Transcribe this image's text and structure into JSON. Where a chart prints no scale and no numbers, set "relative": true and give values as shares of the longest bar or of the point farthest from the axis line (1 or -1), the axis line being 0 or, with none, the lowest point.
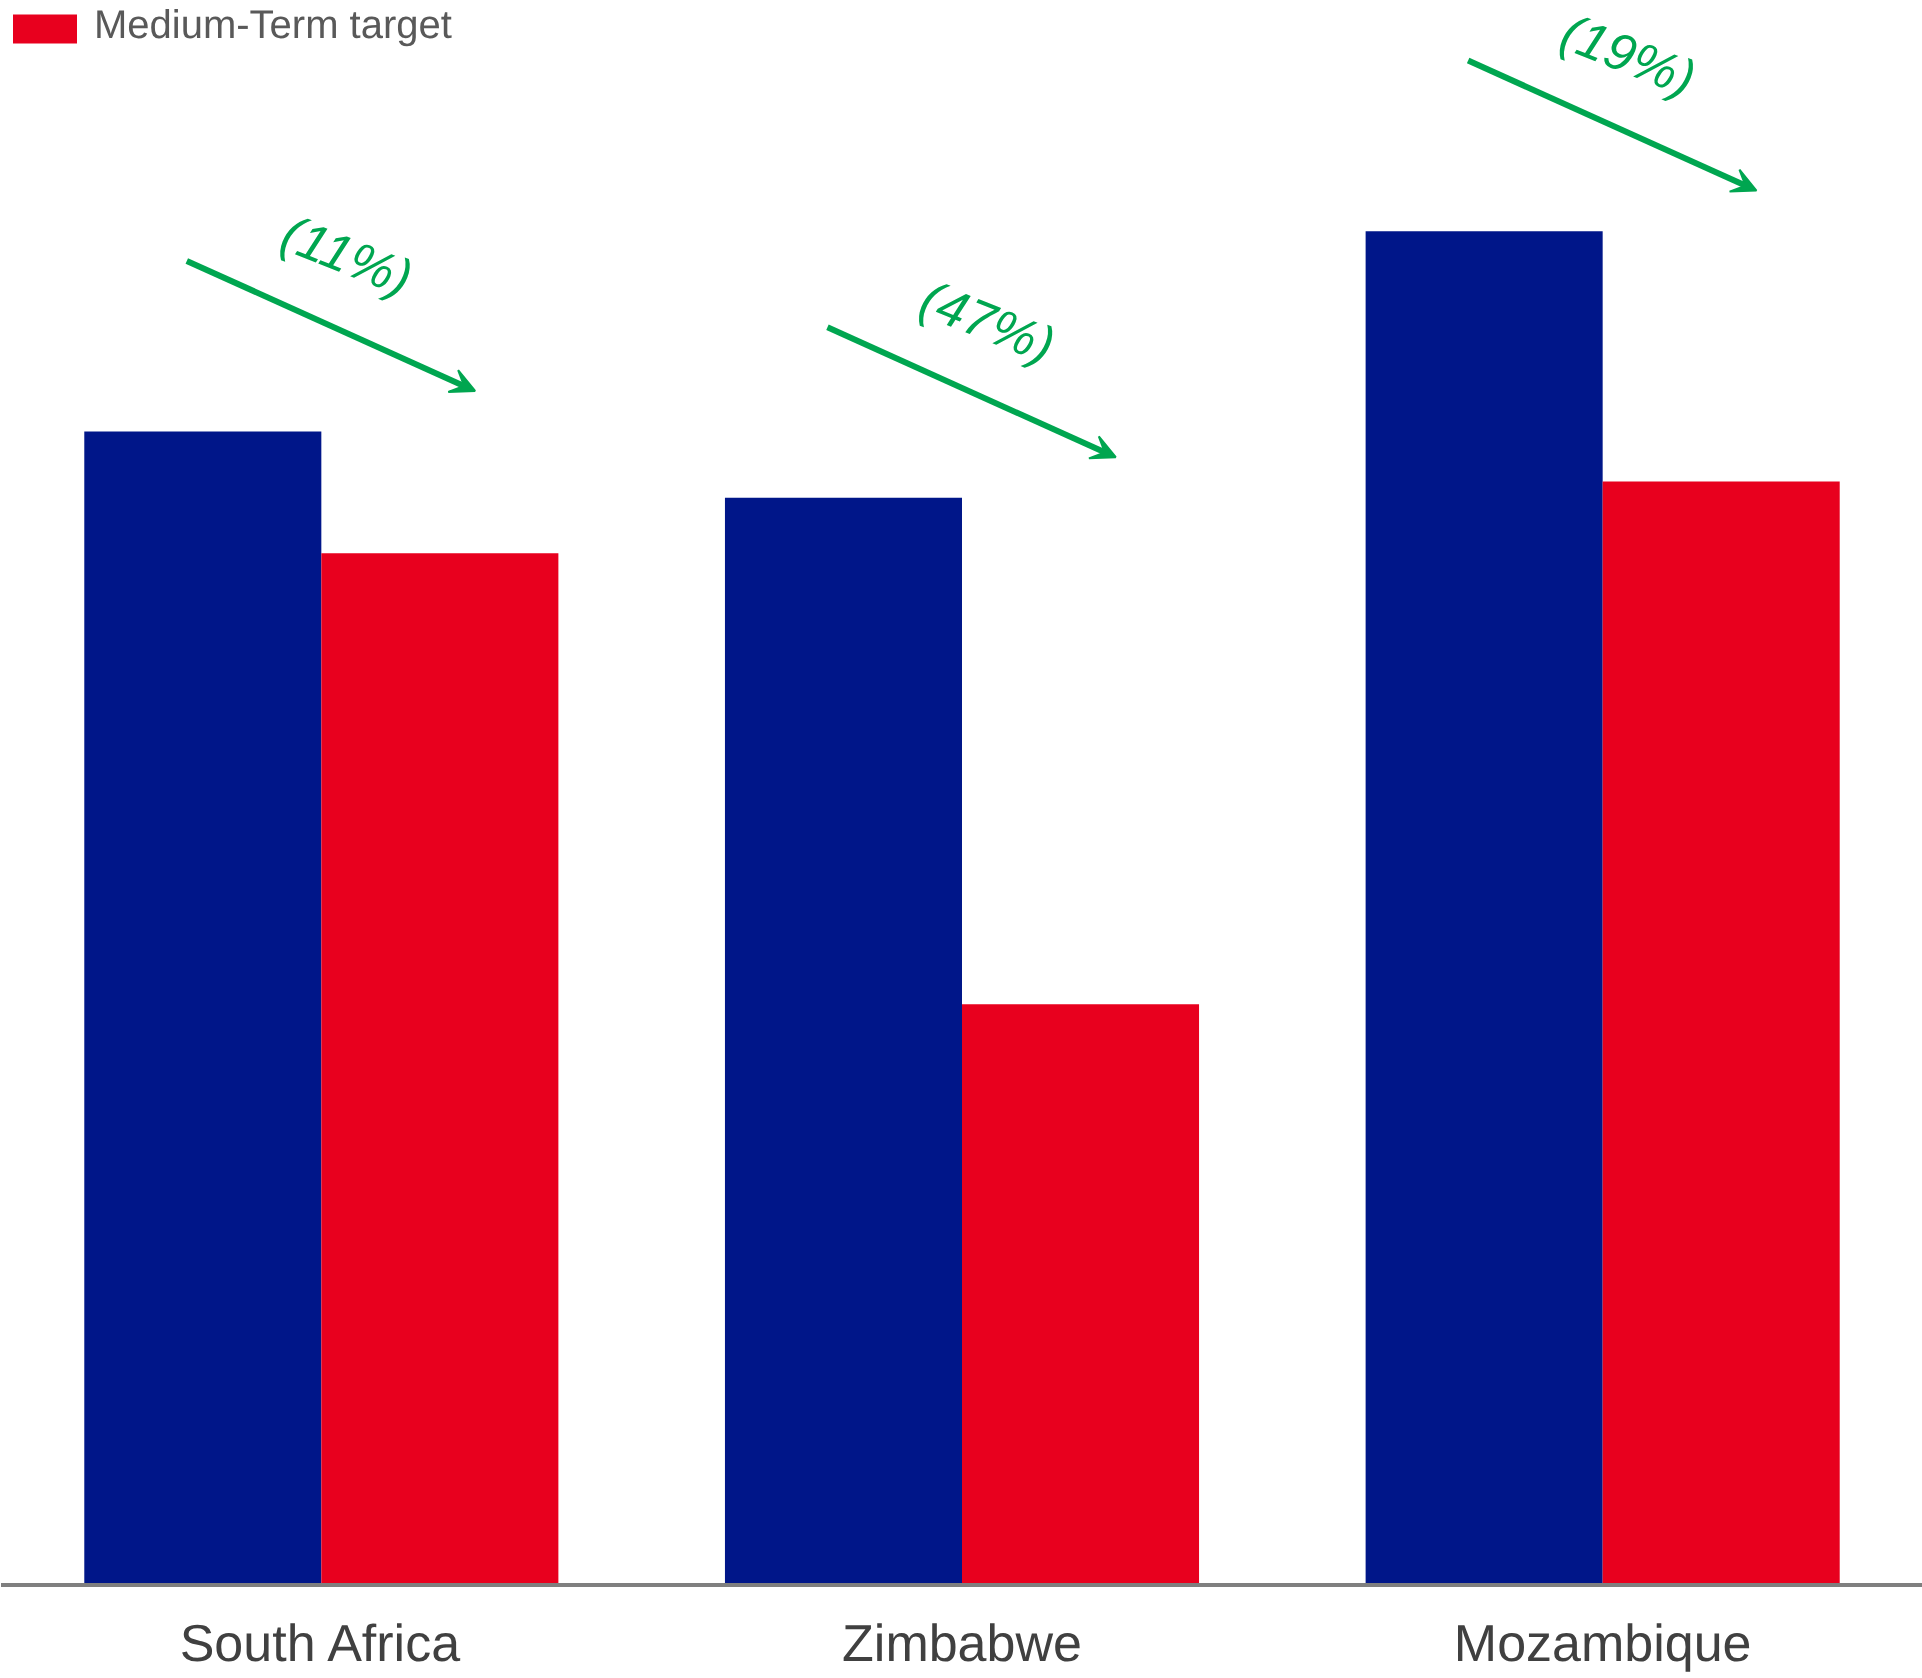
{
  "chart_data": {
    "type": "bar",
    "relative": true,
    "categories": [
      "South Africa",
      "Zimbabwe",
      "Mozambique"
    ],
    "series": [
      {
        "color": "#001689",
        "values": [
          0.852,
          0.803,
          1.0
        ]
      },
      {
        "name": "Medium-Term target",
        "color": "#e8001e",
        "values": [
          0.762,
          0.429,
          0.815
        ]
      }
    ],
    "annotations": [
      "(11%)",
      "(47%)",
      "(19%)"
    ],
    "legend": "top left",
    "grid": false
  }
}
